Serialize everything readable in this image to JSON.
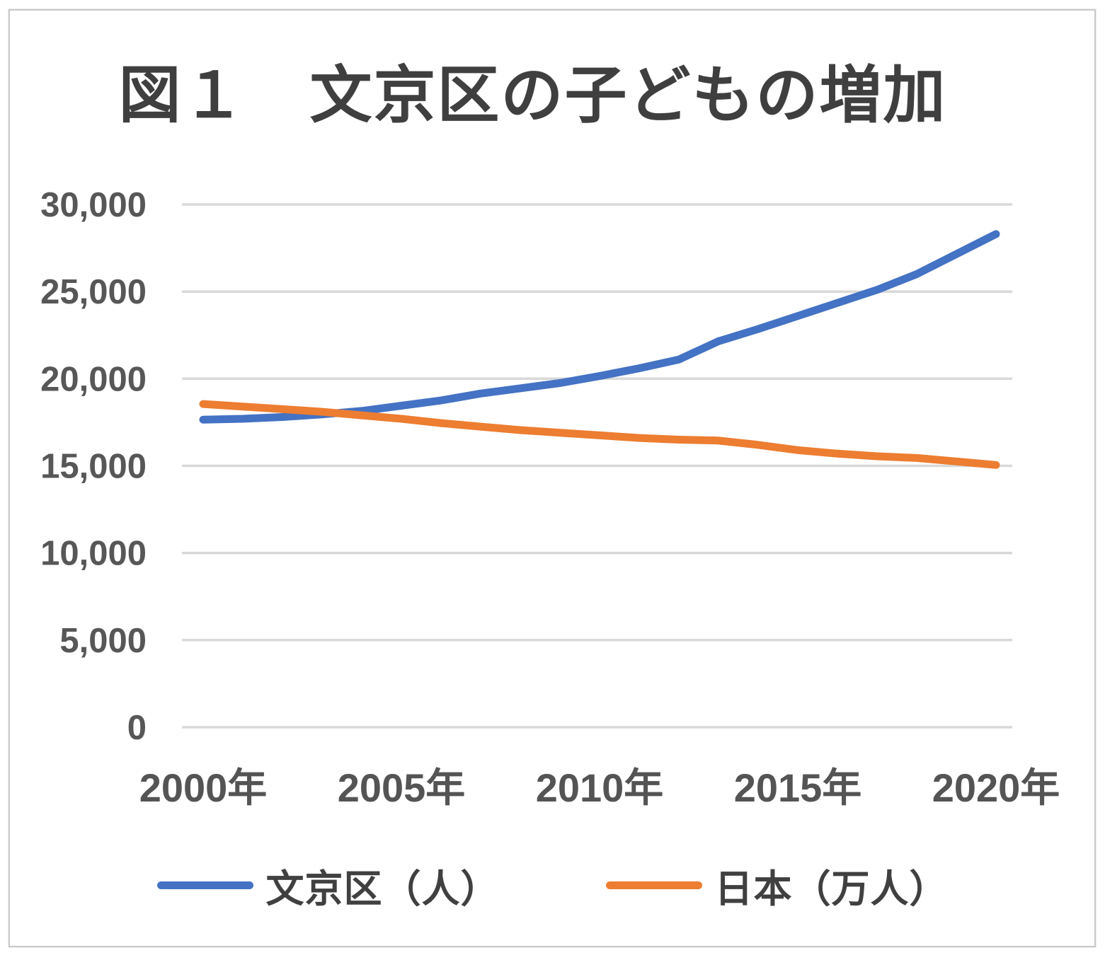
{
  "title": "図１　文京区の子どもの増加",
  "colors": {
    "series_blue": "#4472C4",
    "series_orange": "#ED7D31",
    "gridline": "#D9D9D9",
    "tick_text": "#575757",
    "title_text": "#3F3F3F",
    "frame_border": "#C9C9C9"
  },
  "chart_data": {
    "type": "line",
    "title": "図１　文京区の子どもの増加",
    "x": [
      2000,
      2001,
      2002,
      2003,
      2004,
      2005,
      2006,
      2007,
      2008,
      2009,
      2010,
      2011,
      2012,
      2013,
      2014,
      2015,
      2016,
      2017,
      2018,
      2019,
      2020
    ],
    "x_ticks": [
      2000,
      2005,
      2010,
      2015,
      2020
    ],
    "x_tick_labels": [
      "2000年",
      "2005年",
      "2010年",
      "2015年",
      "2020年"
    ],
    "y_ticks": [
      0,
      5000,
      10000,
      15000,
      20000,
      25000,
      30000
    ],
    "y_tick_labels": [
      "0",
      "5,000",
      "10,000",
      "15,000",
      "20,000",
      "25,000",
      "30,000"
    ],
    "ylim": [
      0,
      30000
    ],
    "grid": "horizontal-only",
    "legend_position": "bottom",
    "series": [
      {
        "key": "bunkyo",
        "name": "文京区（人）",
        "color": "#4472C4",
        "values": [
          17650,
          17700,
          17800,
          17950,
          18150,
          18450,
          18750,
          19150,
          19450,
          19750,
          20150,
          20600,
          21100,
          22150,
          22850,
          23600,
          24350,
          25100,
          26000,
          27150,
          28300
        ]
      },
      {
        "key": "japan",
        "name": "日本（万人）",
        "color": "#ED7D31",
        "values": [
          18550,
          18400,
          18250,
          18100,
          17900,
          17700,
          17450,
          17250,
          17050,
          16900,
          16750,
          16600,
          16500,
          16450,
          16200,
          15900,
          15700,
          15550,
          15450,
          15250,
          15050
        ]
      }
    ]
  }
}
